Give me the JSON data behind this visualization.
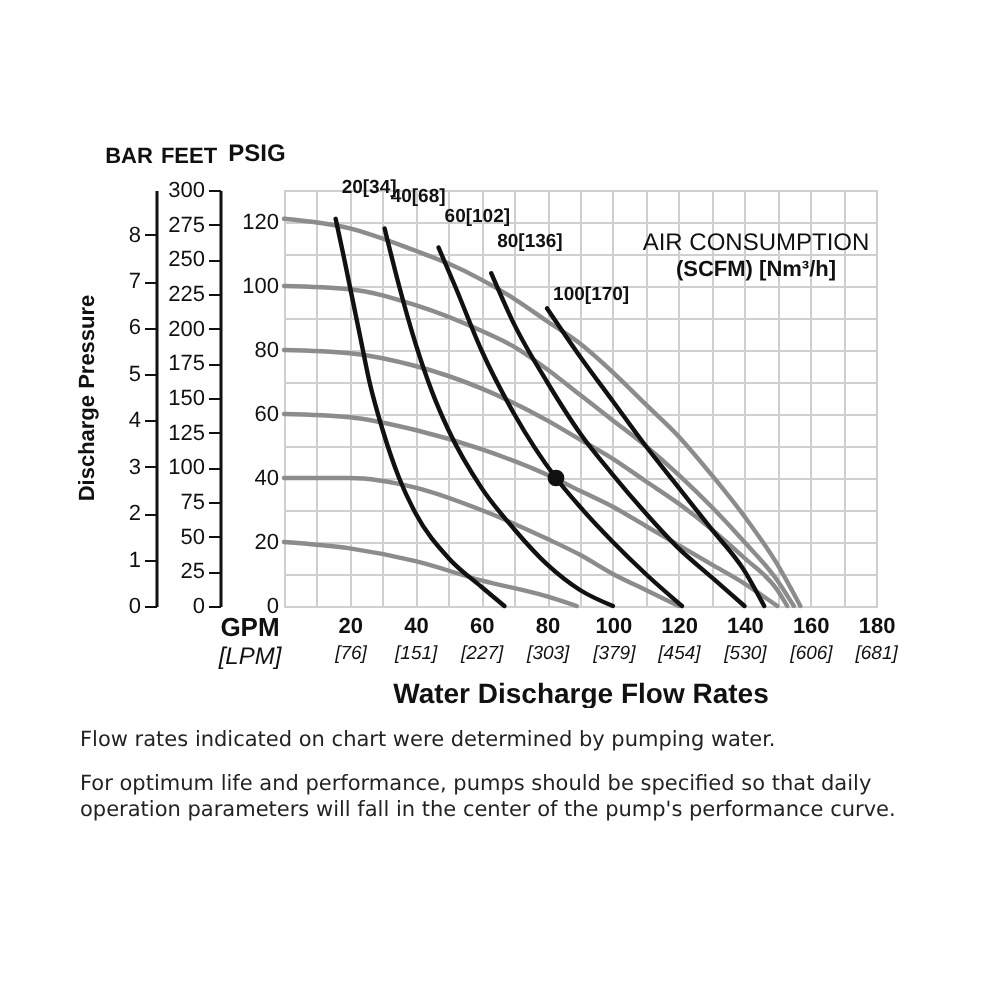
{
  "chart_data": {
    "type": "line",
    "ylabel": "PSIG",
    "y2label": "FEET",
    "y3label": "BAR",
    "xlabel": "Water Discharge Flow Rates",
    "xlim": [
      0,
      180
    ],
    "xticks": [
      {
        "value": 0,
        "label": null
      },
      {
        "value": 10,
        "label": null
      },
      20,
      {
        "value": 30,
        "label": null
      },
      40,
      {
        "value": 50,
        "label": null
      },
      60,
      {
        "value": 70,
        "label": null
      },
      80,
      {
        "value": 90,
        "label": null
      },
      100,
      {
        "value": 110,
        "label": null
      },
      120,
      {
        "value": 130,
        "label": null
      },
      140,
      {
        "value": 150,
        "label": null
      },
      160,
      {
        "value": 170,
        "label": null
      },
      180
    ],
    "x2lim": [
      0,
      681.4
    ],
    "x2ticks": [
      {
        "value": 76,
        "label": "[76]"
      },
      {
        "value": 151,
        "label": "[151]"
      },
      {
        "value": 227,
        "label": "[227]"
      },
      {
        "value": 303,
        "label": "[303]"
      },
      {
        "value": 379,
        "label": "[379]"
      },
      {
        "value": 454,
        "label": "[454]"
      },
      {
        "value": 530,
        "label": "[530]"
      },
      {
        "value": 606,
        "label": "[606]"
      },
      {
        "value": 681,
        "label": "[681]"
      }
    ],
    "ylim": [
      0,
      130
    ],
    "yticks": [
      0,
      {
        "value": 10,
        "label": null
      },
      20,
      {
        "value": 30,
        "label": null
      },
      40,
      {
        "value": 50,
        "label": null
      },
      60,
      {
        "value": 70,
        "label": null
      },
      80,
      {
        "value": 90,
        "label": null
      },
      100,
      {
        "value": 110,
        "label": null
      },
      120,
      {
        "value": 130,
        "label": null
      }
    ],
    "y2lim": [
      0,
      300
    ],
    "y2ticks": [
      0,
      25,
      50,
      75,
      100,
      125,
      150,
      175,
      200,
      225,
      250,
      275,
      300
    ],
    "y3lim": [
      0,
      8.96
    ],
    "y3ticks": [
      0,
      1,
      2,
      3,
      4,
      5,
      6,
      7,
      8
    ],
    "grid": true,
    "series": [
      {
        "color": "#8c8c8c",
        "x": [
          0,
          20,
          40,
          50,
          60,
          70,
          80,
          90,
          100,
          110,
          120,
          130,
          140,
          150,
          157
        ],
        "values": [
          121,
          118,
          111,
          107,
          102,
          96,
          89,
          82,
          73,
          63,
          53,
          41,
          28,
          13,
          0
        ]
      },
      {
        "color": "#8c8c8c",
        "x": [
          0,
          20,
          40,
          60,
          70,
          80,
          90,
          100,
          110,
          120,
          130,
          140,
          150,
          155
        ],
        "values": [
          100,
          99,
          94,
          86,
          81,
          74,
          66,
          58,
          50,
          41,
          31,
          20,
          8,
          0
        ]
      },
      {
        "color": "#8c8c8c",
        "x": [
          0,
          20,
          40,
          60,
          80,
          90,
          100,
          110,
          120,
          130,
          140,
          150,
          153
        ],
        "values": [
          80,
          79,
          75,
          68,
          58,
          52,
          46,
          39,
          32,
          24,
          15,
          5,
          0
        ]
      },
      {
        "color": "#8c8c8c",
        "x": [
          0,
          20,
          40,
          60,
          80,
          90,
          100,
          110,
          120,
          130,
          140,
          150
        ],
        "values": [
          60,
          59,
          55,
          49,
          41,
          36,
          31,
          25,
          19,
          13,
          7,
          0
        ]
      },
      {
        "color": "#8c8c8c",
        "x": [
          0,
          20,
          40,
          60,
          80,
          90,
          100,
          110,
          120
        ],
        "values": [
          40,
          40,
          37,
          30,
          21,
          16,
          10,
          5,
          0
        ]
      },
      {
        "color": "#8c8c8c",
        "x": [
          0,
          20,
          40,
          60,
          80,
          89
        ],
        "values": [
          20,
          18,
          14,
          8,
          3,
          0
        ]
      },
      {
        "name": "20[34]",
        "color": "#111111",
        "x": [
          15.7,
          18,
          20,
          23,
          26,
          30,
          35,
          40,
          50,
          60,
          67
        ],
        "values": [
          121,
          110,
          100,
          85,
          70,
          55,
          40,
          29,
          15,
          6,
          0
        ]
      },
      {
        "name": "40[68]",
        "color": "#111111",
        "x": [
          30.6,
          35,
          40,
          45,
          50,
          60,
          70,
          80,
          90,
          100
        ],
        "values": [
          118,
          100,
          82,
          67,
          55,
          37,
          24,
          13,
          5,
          0
        ]
      },
      {
        "name": "60[102]",
        "color": "#111111",
        "x": [
          47,
          52,
          60,
          70,
          82.7,
          90,
          100,
          110,
          121
        ],
        "values": [
          112,
          100,
          80,
          60,
          40,
          31,
          20,
          10,
          0
        ]
      },
      {
        "name": "80[136]",
        "color": "#111111",
        "x": [
          63,
          70,
          80,
          90,
          100,
          110,
          120,
          130,
          140
        ],
        "values": [
          104,
          88,
          70,
          54,
          41,
          29,
          18,
          9,
          0
        ]
      },
      {
        "name": "100[170]",
        "color": "#111111",
        "x": [
          80,
          90,
          100,
          110,
          120,
          130,
          140,
          146
        ],
        "values": [
          93,
          78,
          64,
          50,
          37,
          24,
          11,
          0
        ]
      },
      {
        "type": "scatter",
        "marker": "circle",
        "color": "#111111",
        "x": [
          82.7
        ],
        "values": [
          40
        ]
      }
    ],
    "annotations": [
      "Discharge Pressure",
      "GPM",
      "[LPM]",
      "AIR CONSUMPTION",
      "(SCFM) [Nm³/h]",
      "Flow rates indicated on chart were determined by pumping water.",
      "For optimum life and performance, pumps should be specified so that daily operation parameters will fall in the center of the pump's performance curve."
    ]
  }
}
